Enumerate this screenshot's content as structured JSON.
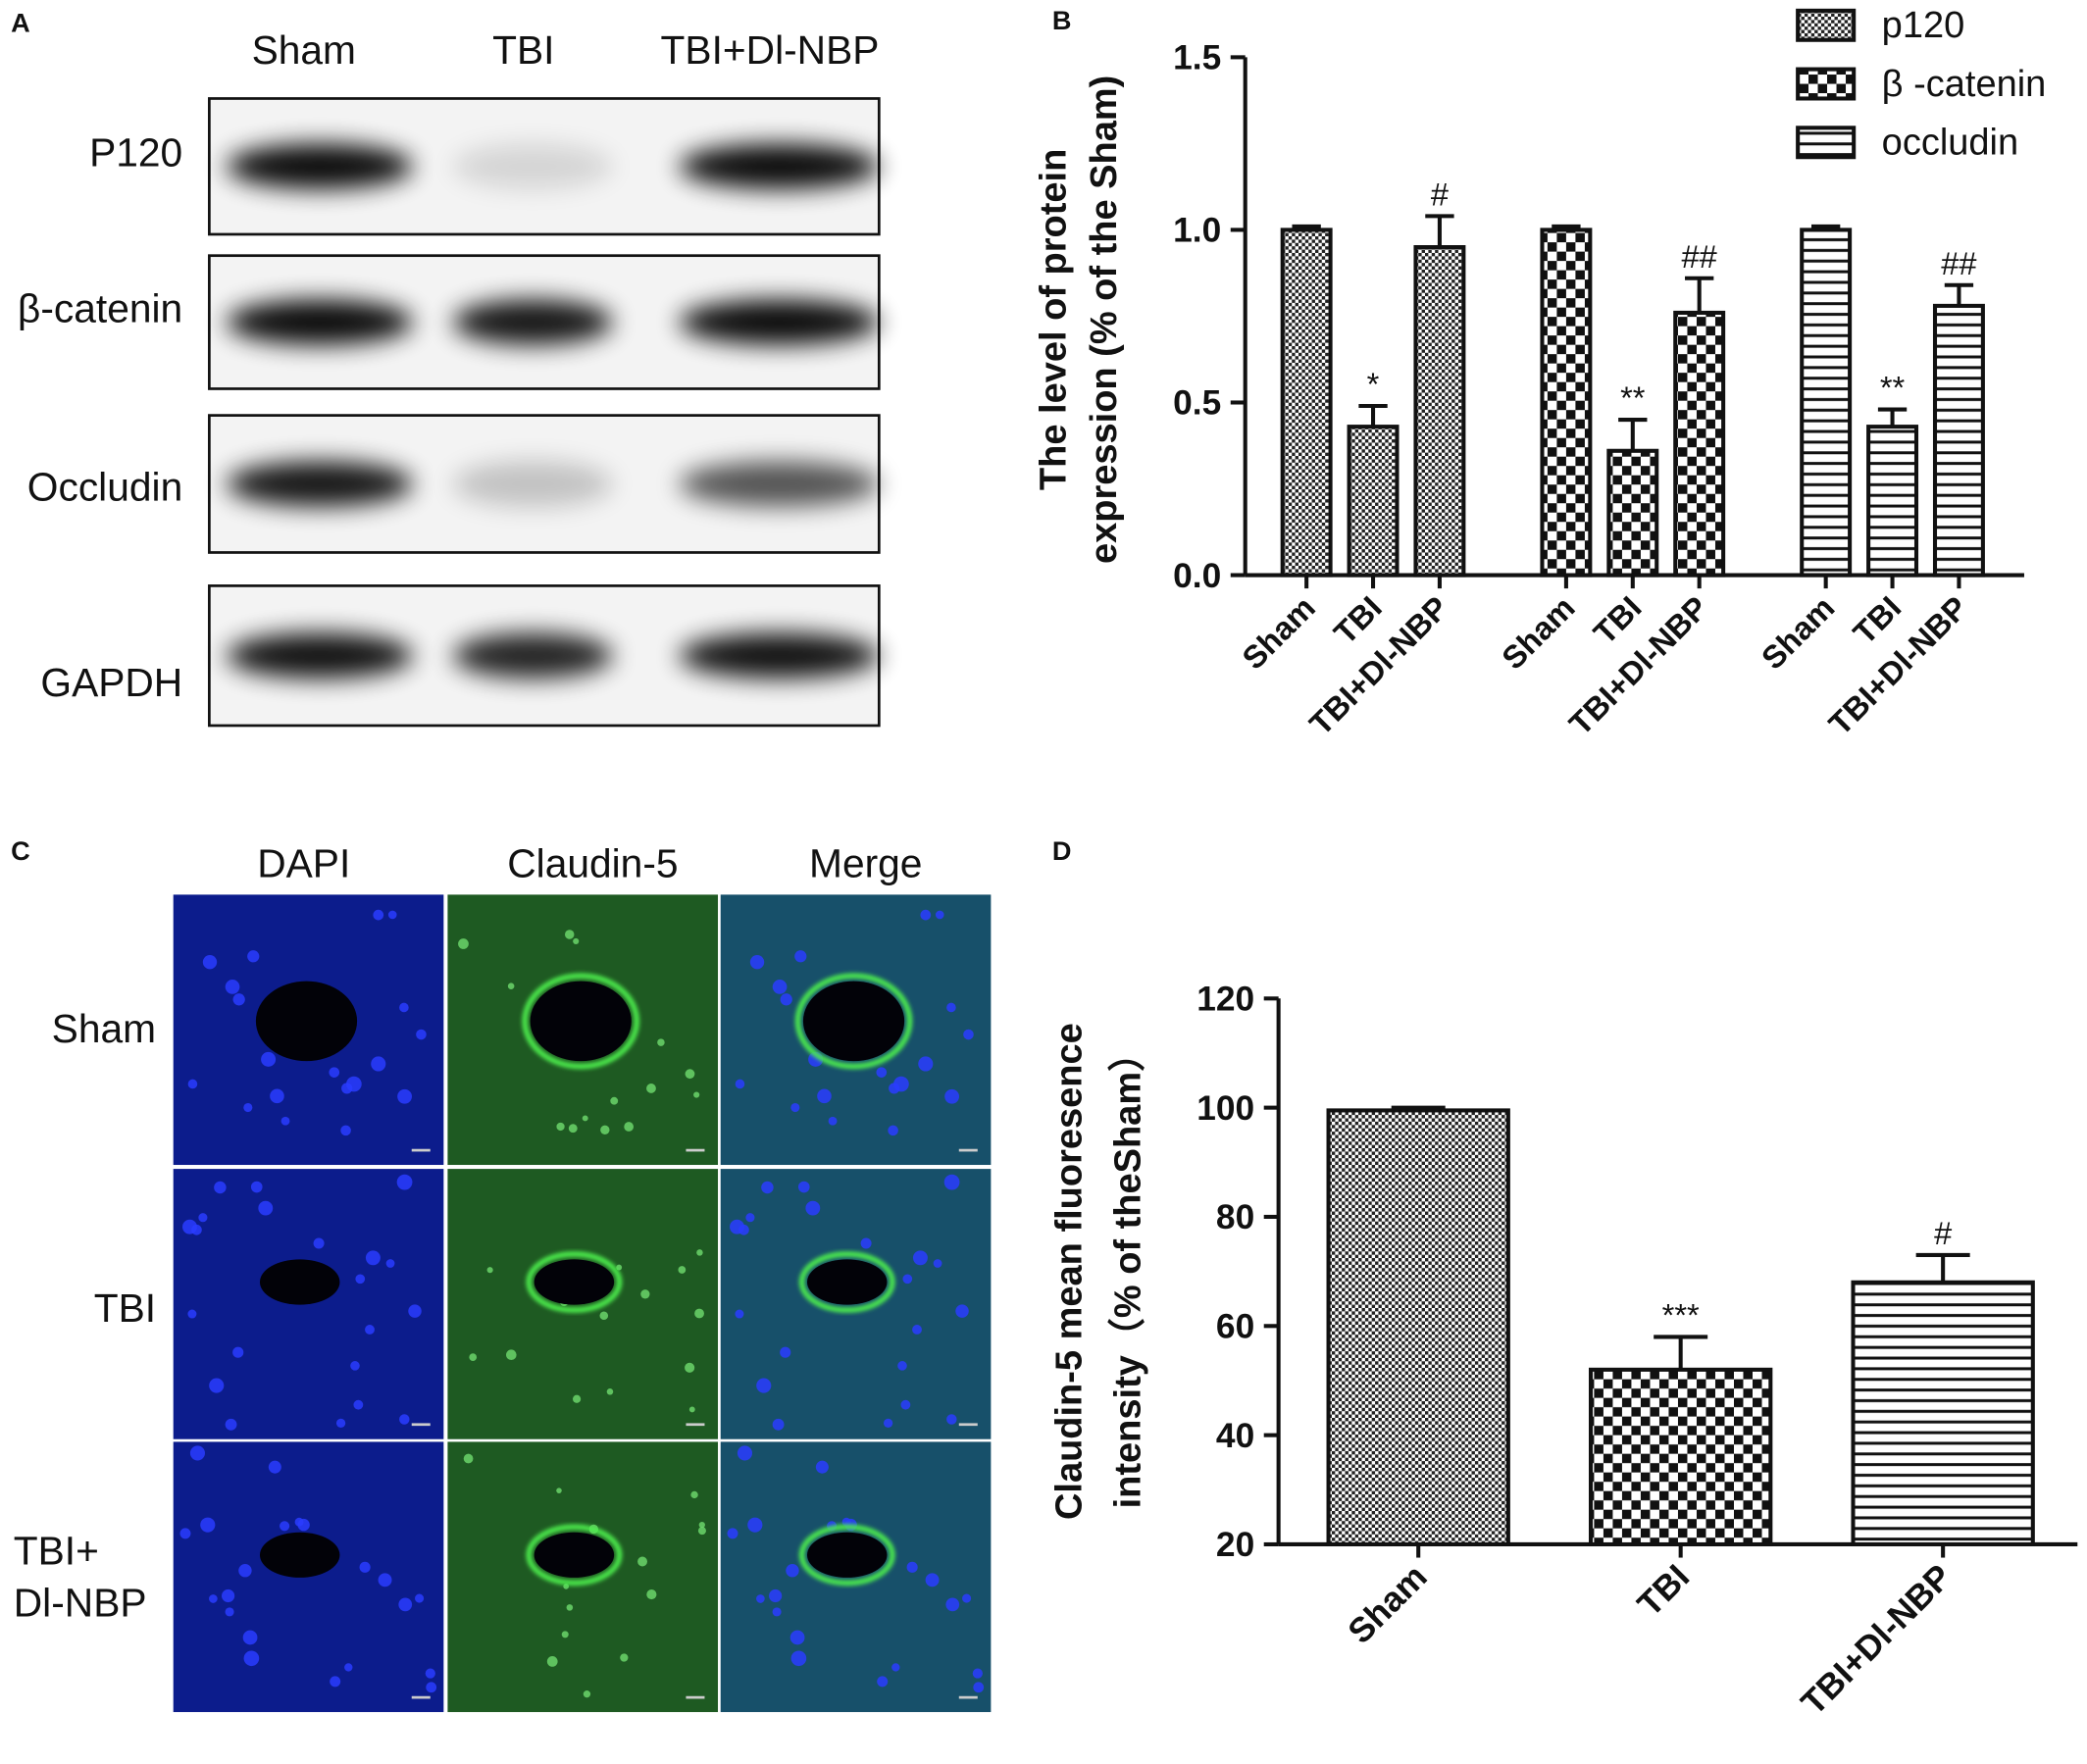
{
  "panel_a": {
    "letter": "A",
    "columns": [
      "Sham",
      "TBI",
      "TBI+Dl-NBP"
    ],
    "rows": [
      "P120",
      "β-catenin",
      "Occludin",
      "GAPDH"
    ]
  },
  "panel_c": {
    "letter": "C",
    "columns": [
      "DAPI",
      "Claudin-5",
      "Merge"
    ],
    "rows": [
      [
        "Sham"
      ],
      [
        "TBI"
      ],
      [
        "TBI+",
        "Dl-NBP"
      ]
    ]
  },
  "chart_data": [
    {
      "type": "bar",
      "panel": "B",
      "y_label": [
        "The level of protein",
        "expression (% of the Sham)"
      ],
      "categories": [
        "Sham",
        "TBI",
        "TBI+Dl-NBP"
      ],
      "series": [
        {
          "name": "p120",
          "pattern": "dots",
          "values": [
            1.0,
            0.43,
            0.95
          ],
          "errors": [
            0.01,
            0.06,
            0.09
          ],
          "annotations": [
            null,
            "*",
            "#"
          ]
        },
        {
          "name": "β -catenin",
          "pattern": "checker",
          "values": [
            1.0,
            0.36,
            0.76
          ],
          "errors": [
            0.01,
            0.09,
            0.1
          ],
          "annotations": [
            null,
            "**",
            "##"
          ]
        },
        {
          "name": "occludin",
          "pattern": "stripes",
          "values": [
            1.0,
            0.43,
            0.78
          ],
          "errors": [
            0.01,
            0.05,
            0.06
          ],
          "annotations": [
            null,
            "**",
            "##"
          ]
        }
      ],
      "ylim": [
        0,
        1.5
      ],
      "yticks": [
        {
          "value": 0,
          "label": "0.0"
        },
        {
          "value": 0.5,
          "label": "0.5"
        },
        {
          "value": 1,
          "label": "1.0"
        },
        {
          "value": 1.5,
          "label": "1.5"
        }
      ],
      "legend": "top-right"
    },
    {
      "type": "bar",
      "panel": "D",
      "y_label": [
        "Claudin-5 mean fluoresence",
        "intensity（% of theSham）"
      ],
      "categories": [
        "Sham",
        "TBI",
        "TBI+Dl-NBP"
      ],
      "values": [
        99.5,
        52,
        68
      ],
      "errors": [
        0.5,
        6,
        5
      ],
      "annotations": [
        null,
        "***",
        "#"
      ],
      "patterns": [
        "dots",
        "checker",
        "stripes"
      ],
      "ylim": [
        20,
        120
      ],
      "yticks": [
        20,
        40,
        60,
        80,
        100,
        120
      ]
    }
  ]
}
